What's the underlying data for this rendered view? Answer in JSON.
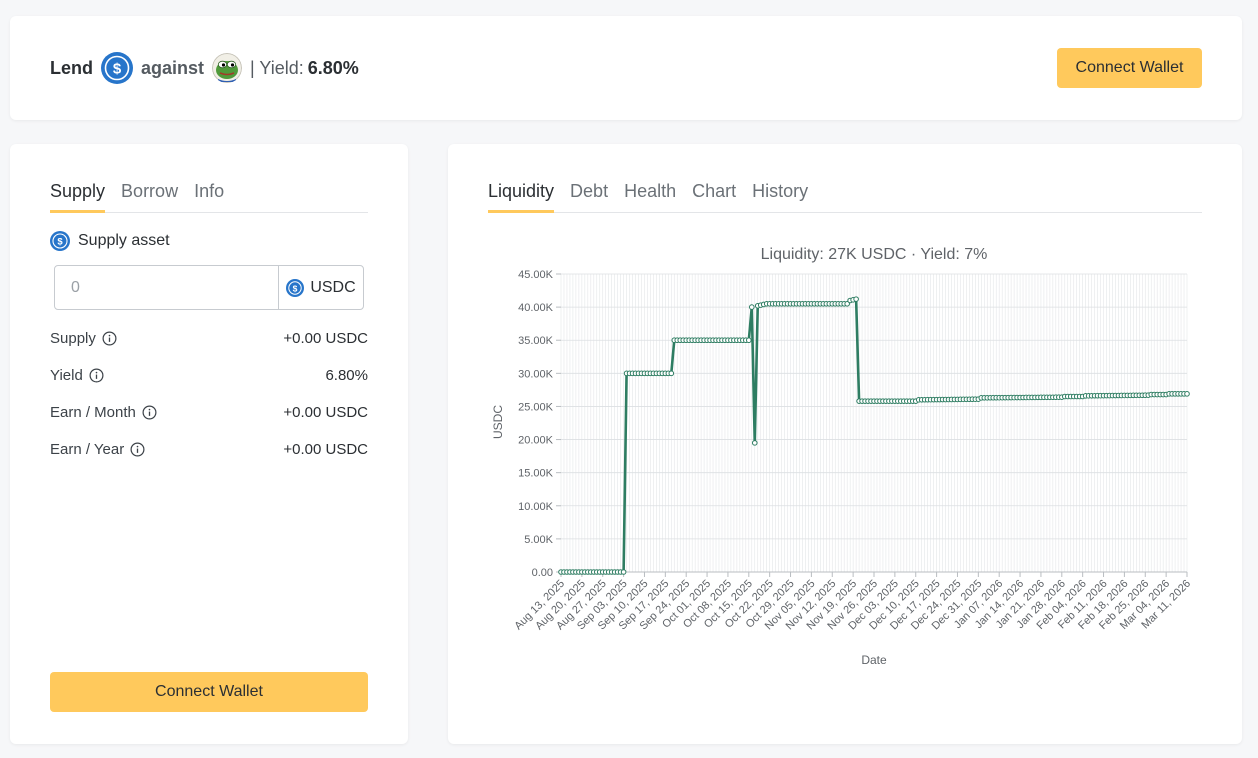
{
  "header": {
    "lend": "Lend",
    "against": "against",
    "yield_label": "| Yield:",
    "yield_value": "6.80%",
    "connect_label": "Connect Wallet"
  },
  "left": {
    "tabs": [
      {
        "label": "Supply",
        "active": true
      },
      {
        "label": "Borrow",
        "active": false
      },
      {
        "label": "Info",
        "active": false
      }
    ],
    "supply_asset_label": "Supply asset",
    "input": {
      "placeholder": "0",
      "value": "",
      "asset": "USDC"
    },
    "stats": [
      {
        "label": "Supply",
        "value": "+0.00 USDC"
      },
      {
        "label": "Yield",
        "value": "6.80%"
      },
      {
        "label": "Earn / Month",
        "value": "+0.00 USDC"
      },
      {
        "label": "Earn / Year",
        "value": "+0.00 USDC"
      }
    ],
    "connect_label": "Connect Wallet"
  },
  "right": {
    "tabs": [
      {
        "label": "Liquidity",
        "active": true
      },
      {
        "label": "Debt",
        "active": false
      },
      {
        "label": "Health",
        "active": false
      },
      {
        "label": "Chart",
        "active": false
      },
      {
        "label": "History",
        "active": false
      }
    ]
  },
  "colors": {
    "accent": "#ffc95c",
    "line": "#2e7d62",
    "usdc": "#2775ca"
  },
  "icons": {
    "usdc": "usdc-icon",
    "pepe": "pepe-icon",
    "info": "info-icon"
  },
  "chart_data": {
    "type": "line",
    "title": "Liquidity: 27K USDC · Yield: 7%",
    "xlabel": "Date",
    "ylabel": "USDC",
    "ylim": [
      0,
      45000
    ],
    "y_ticks": [
      "0.00",
      "5.00K",
      "10.00K",
      "15.00K",
      "20.00K",
      "25.00K",
      "30.00K",
      "35.00K",
      "40.00K",
      "45.00K"
    ],
    "x_ticks": [
      "Aug 13, 2025",
      "Aug 20, 2025",
      "Aug 27, 2025",
      "Sep 03, 2025",
      "Sep 10, 2025",
      "Sep 17, 2025",
      "Sep 24, 2025",
      "Oct 01, 2025",
      "Oct 08, 2025",
      "Oct 15, 2025",
      "Oct 22, 2025",
      "Oct 29, 2025",
      "Nov 05, 2025",
      "Nov 12, 2025",
      "Nov 19, 2025",
      "Nov 26, 2025",
      "Dec 03, 2025",
      "Dec 10, 2025",
      "Dec 17, 2025",
      "Dec 24, 2025",
      "Dec 31, 2025",
      "Jan 07, 2026",
      "Jan 14, 2026",
      "Jan 21, 2026",
      "Jan 28, 2026",
      "Feb 04, 2026",
      "Feb 11, 2026",
      "Feb 18, 2026",
      "Feb 25, 2026",
      "Mar 04, 2026",
      "Mar 11, 2026"
    ],
    "grid": true,
    "series": [
      {
        "x": [
          "2025-08-13",
          "2025-09-03",
          "2025-09-04",
          "2025-09-19",
          "2025-09-20",
          "2025-10-15",
          "2025-10-16",
          "2025-10-17",
          "2025-10-18",
          "2025-10-19",
          "2025-10-21",
          "2025-11-17",
          "2025-11-18",
          "2025-11-20",
          "2025-11-21",
          "2025-12-10",
          "2025-12-11",
          "2025-12-31",
          "2026-01-01",
          "2026-01-28",
          "2026-01-29",
          "2026-02-04",
          "2026-02-05",
          "2026-02-26",
          "2026-02-27",
          "2026-03-04",
          "2026-03-05",
          "2026-03-11"
        ],
        "y": [
          0,
          0,
          30000,
          30000,
          35000,
          35000,
          40000,
          19500,
          40200,
          40300,
          40500,
          40500,
          41000,
          41200,
          25800,
          25800,
          26000,
          26100,
          26300,
          26400,
          26500,
          26500,
          26600,
          26700,
          26800,
          26800,
          26900,
          26900
        ]
      }
    ]
  }
}
